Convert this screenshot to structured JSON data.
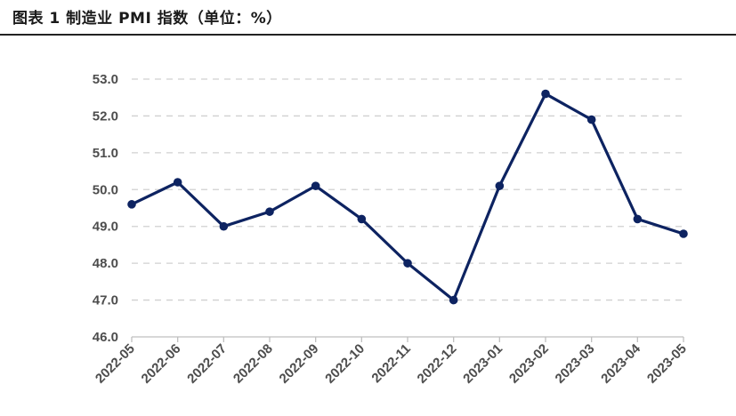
{
  "title": "图表 1  制造业 PMI 指数（单位：%）",
  "colors": {
    "line": "#0d2361",
    "grid": "#d0d0d0",
    "text": "#4d4d4d"
  },
  "chart_data": {
    "type": "line",
    "title": "图表 1  制造业 PMI 指数（单位：%）",
    "xlabel": "",
    "ylabel": "",
    "x": [
      "2022-05",
      "2022-06",
      "2022-07",
      "2022-08",
      "2022-09",
      "2022-10",
      "2022-11",
      "2022-12",
      "2023-01",
      "2023-02",
      "2023-03",
      "2023-04",
      "2023-05"
    ],
    "series": [
      {
        "values": [
          49.6,
          50.2,
          49.0,
          49.4,
          50.1,
          49.2,
          48.0,
          47.0,
          50.1,
          52.6,
          51.9,
          49.2,
          48.8
        ]
      }
    ],
    "ylim": [
      46.0,
      53.0
    ],
    "yticks": [
      "46.0",
      "47.0",
      "48.0",
      "49.0",
      "50.0",
      "51.0",
      "52.0",
      "53.0"
    ],
    "grid": true,
    "legend": "none"
  }
}
